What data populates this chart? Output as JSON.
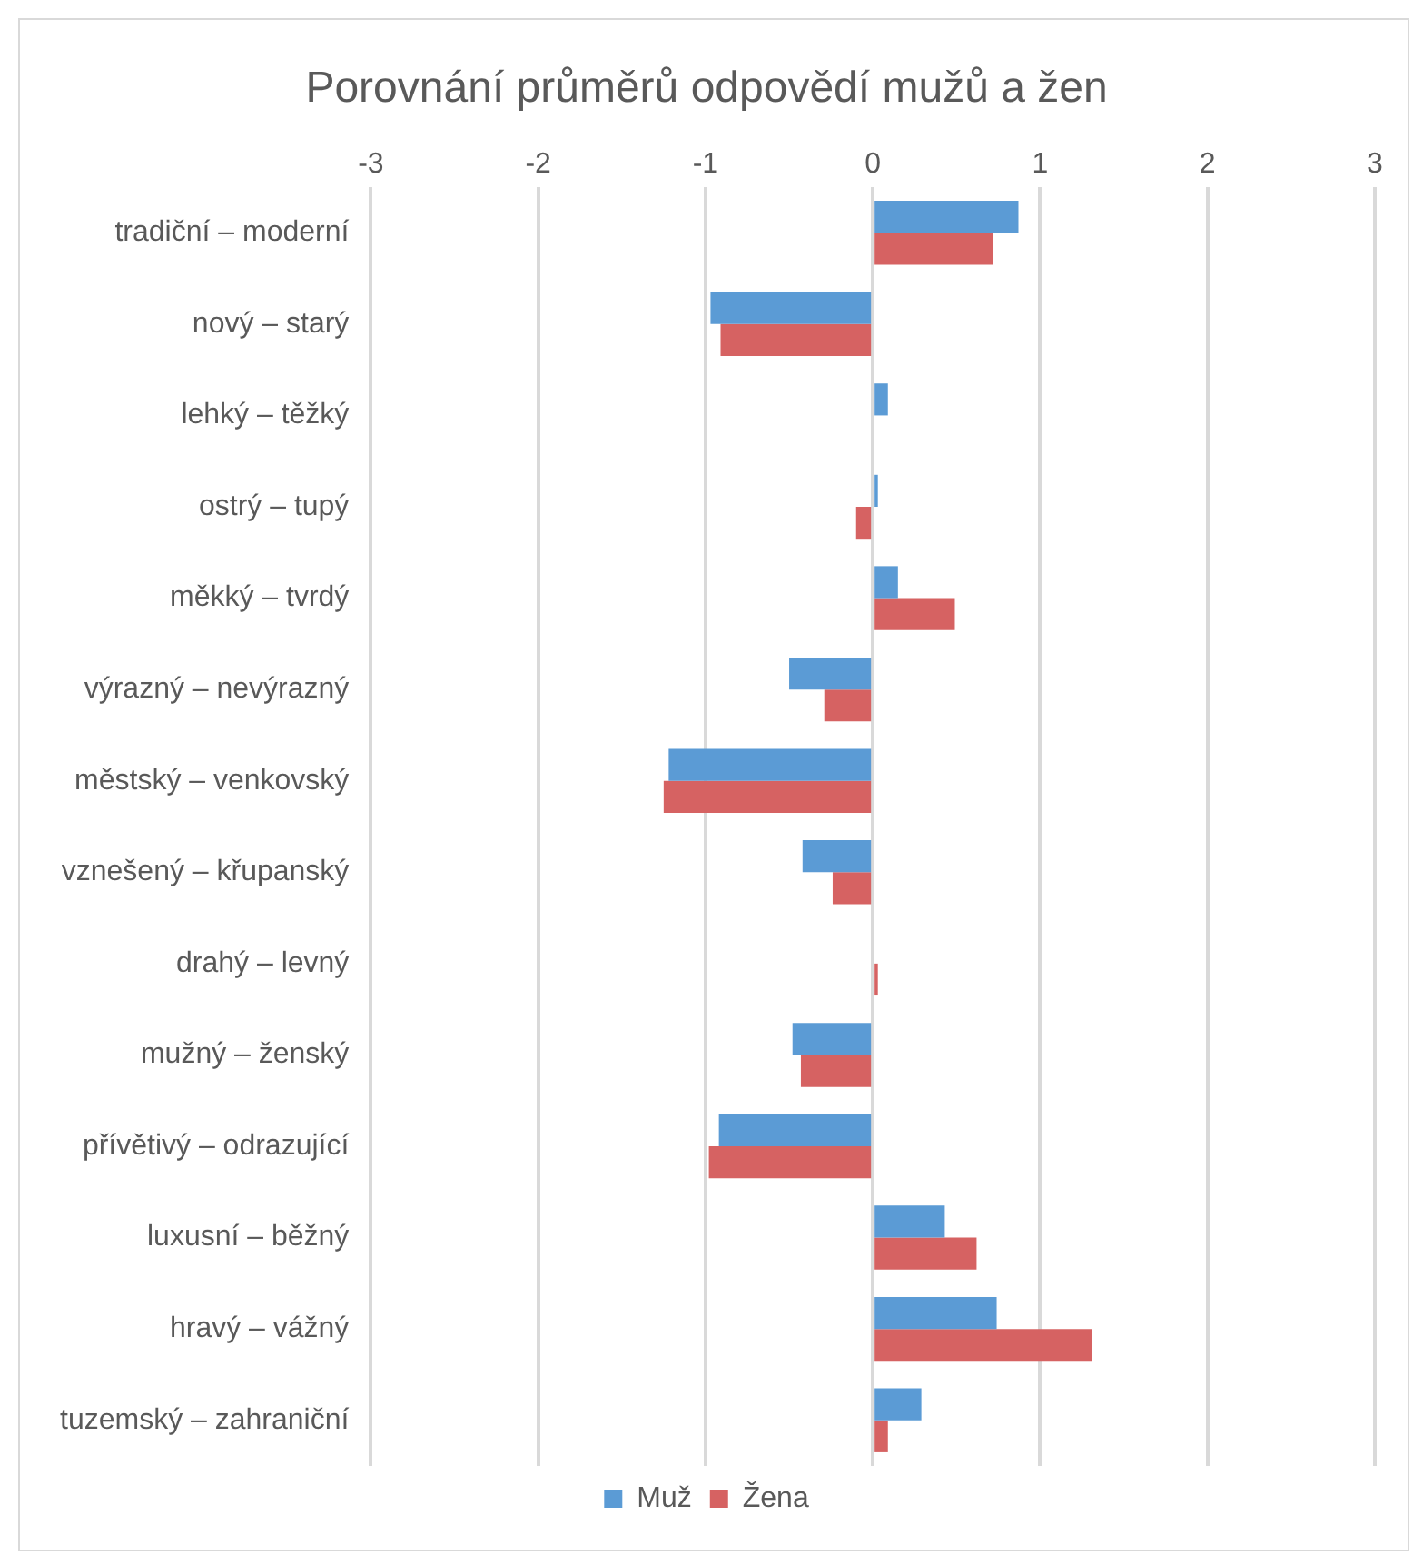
{
  "chart_data": {
    "type": "bar",
    "orientation": "horizontal",
    "title": "Porovnání průměrů odpovědí mužů a žen",
    "categories": [
      "tradiční – moderní",
      "nový – starý",
      "lehký – těžký",
      "ostrý – tupý",
      "měkký – tvrdý",
      "výrazný – nevýrazný",
      "městský – venkovský",
      "vznešený – křupanský",
      "drahý – levný",
      "mužný – ženský",
      "přívětivý – odrazující",
      "luxusní – běžný",
      "hravý – vážný",
      "tuzemský – zahraniční"
    ],
    "series": [
      {
        "name": "Muž",
        "color": "#5b9bd5",
        "values": [
          0.87,
          -0.97,
          0.09,
          0.03,
          0.15,
          -0.5,
          -1.22,
          -0.42,
          0,
          -0.48,
          -0.92,
          0.43,
          0.74,
          0.29
        ]
      },
      {
        "name": "Žena",
        "color": "#d66262",
        "values": [
          0.72,
          -0.91,
          0,
          -0.1,
          0.49,
          -0.29,
          -1.25,
          -0.24,
          0.03,
          -0.43,
          -0.98,
          0.62,
          1.31,
          0.09
        ]
      }
    ],
    "xlim": [
      -3,
      3
    ],
    "xticks": [
      -3,
      -2,
      -1,
      0,
      1,
      2,
      3
    ],
    "grid": "x",
    "legend": "bottom"
  }
}
